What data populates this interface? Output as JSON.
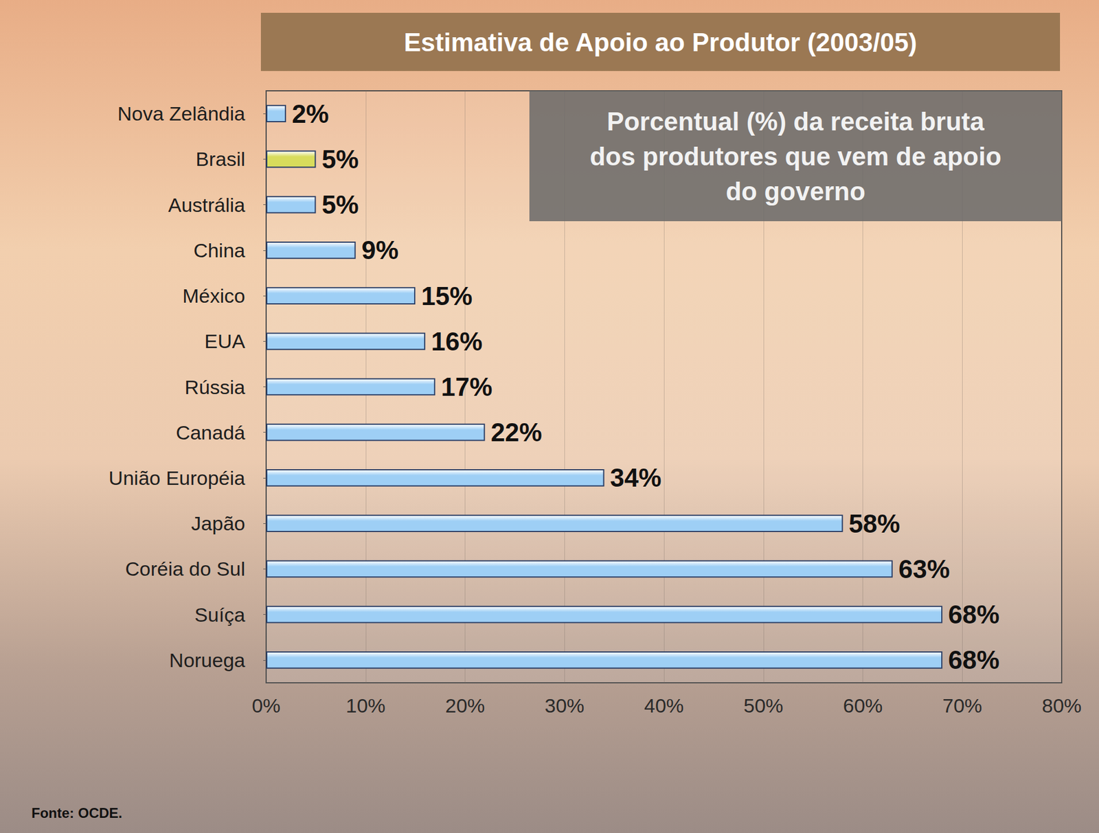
{
  "chart_data": {
    "type": "bar",
    "title": "Estimativa de Apoio ao Produtor (2003/05)",
    "annotation": "Porcentual (%) da receita bruta dos produtores que vem de apoio do governo",
    "source": "Fonte: OCDE.",
    "orientation": "horizontal",
    "categories": [
      "Nova Zelândia",
      "Brasil",
      "Austrália",
      "China",
      "México",
      "EUA",
      "Rússia",
      "Canadá",
      "União Européia",
      "Japão",
      "Coréia do Sul",
      "Suíça",
      "Noruega"
    ],
    "values": [
      2,
      5,
      5,
      9,
      15,
      16,
      17,
      22,
      34,
      58,
      63,
      68,
      68
    ],
    "value_labels": [
      "2%",
      "5%",
      "5%",
      "9%",
      "15%",
      "16%",
      "17%",
      "22%",
      "34%",
      "58%",
      "63%",
      "68%",
      "68%"
    ],
    "colors": [
      "#9ecff5",
      "#d8dc5c",
      "#9ecff5",
      "#9ecff5",
      "#9ecff5",
      "#9ecff5",
      "#9ecff5",
      "#9ecff5",
      "#9ecff5",
      "#9ecff5",
      "#9ecff5",
      "#9ecff5",
      "#9ecff5"
    ],
    "xlim": [
      0,
      80
    ],
    "xticks": [
      {
        "value": 0,
        "label": "0%"
      },
      {
        "value": 10,
        "label": "10%"
      },
      {
        "value": 20,
        "label": "20%"
      },
      {
        "value": 30,
        "label": "30%"
      },
      {
        "value": 40,
        "label": "40%"
      },
      {
        "value": 50,
        "label": "50%"
      },
      {
        "value": 60,
        "label": "60%"
      },
      {
        "value": 70,
        "label": "70%"
      },
      {
        "value": 80,
        "label": "80%"
      }
    ],
    "grid": true,
    "data_labels": true
  }
}
